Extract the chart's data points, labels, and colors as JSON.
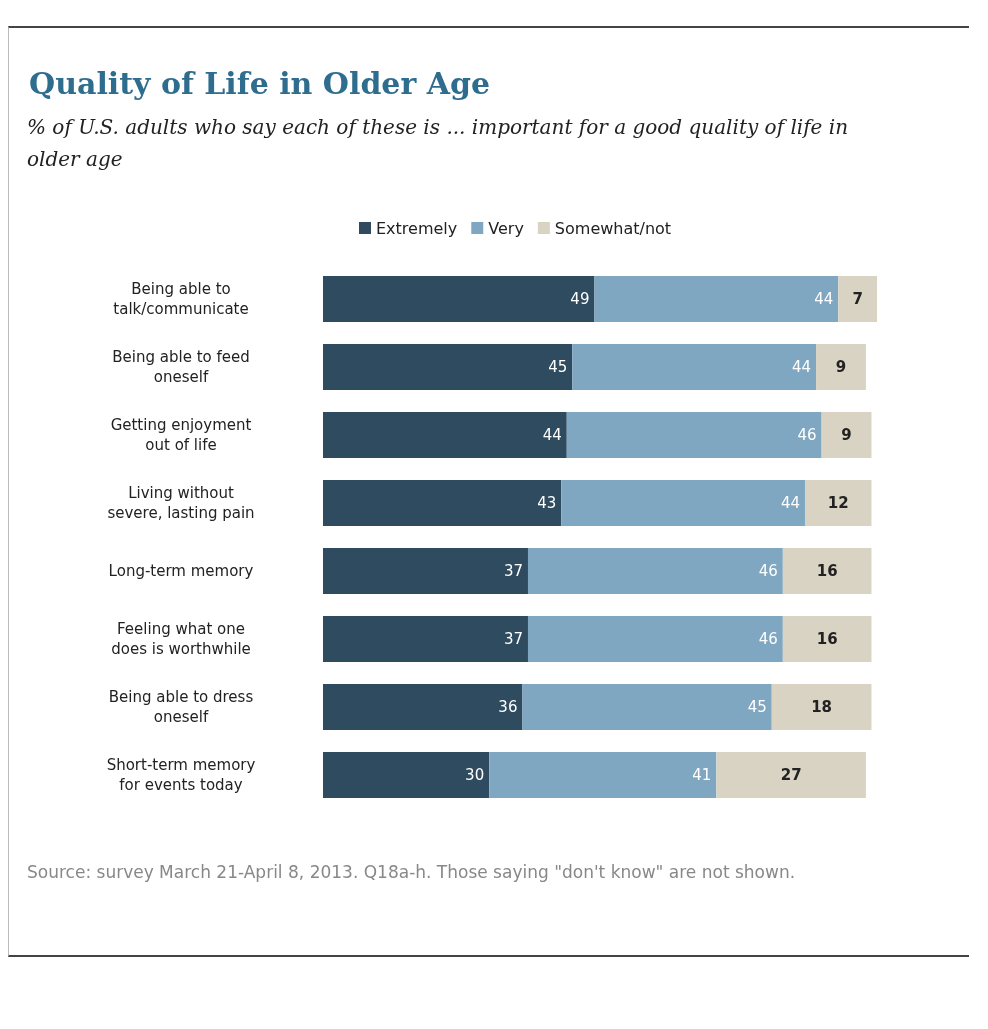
{
  "chart_data": {
    "type": "bar",
    "orientation": "horizontal",
    "stacked": true,
    "title": "Quality of Life in Older Age",
    "subtitle": "% of U.S. adults who say each of these is ... important for a good quality of life in older age",
    "categories": [
      "Being able to\ntalk/communicate",
      "Being able to feed\noneself",
      "Getting enjoyment\nout of life",
      "Living without\nsevere, lasting pain",
      "Long-term memory",
      "Feeling what one\ndoes is worthwhile",
      "Being able to dress\noneself",
      "Short-term memory\nfor events today"
    ],
    "series": [
      {
        "name": "Extremely",
        "color": "#2f4b5f",
        "values": [
          49,
          45,
          44,
          43,
          37,
          37,
          36,
          30
        ]
      },
      {
        "name": "Very",
        "color": "#7fa7c2",
        "values": [
          44,
          44,
          46,
          44,
          46,
          46,
          45,
          41
        ]
      },
      {
        "name": "Somewhat/not",
        "color": "#d9d3c4",
        "values": [
          7,
          9,
          9,
          12,
          16,
          16,
          18,
          27
        ]
      }
    ],
    "data_labels": true,
    "legend": "top",
    "annotations": [
      "Source: survey March 21-April 8, 2013. Q18a-h. Those saying \"don't know\" are not shown."
    ]
  }
}
